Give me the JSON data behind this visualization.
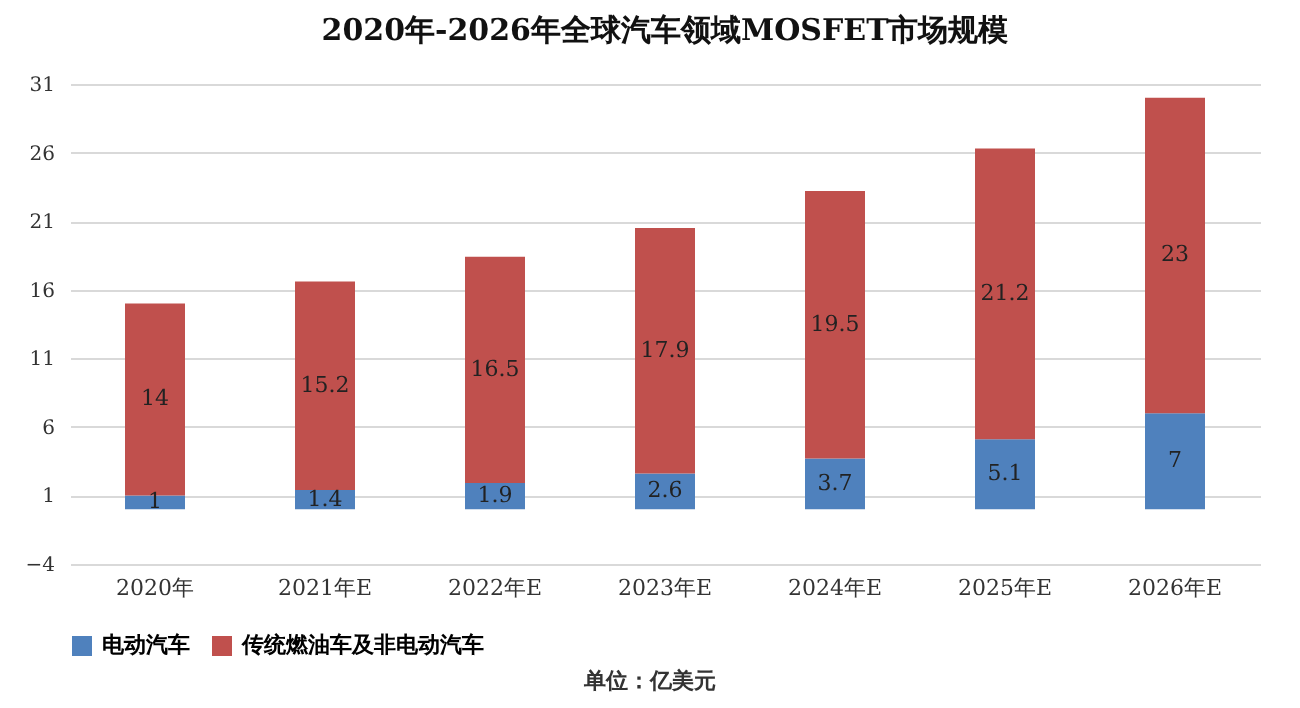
{
  "chart_data": {
    "type": "bar",
    "title": "2020年-2026年全球汽车领域MOSFET市场规模",
    "categories": [
      "2020年",
      "2021年E",
      "2022年E",
      "2023年E",
      "2024年E",
      "2025年E",
      "2026年E"
    ],
    "series": [
      {
        "name": "电动汽车",
        "color": "#4f81bd",
        "values": [
          1,
          1.4,
          1.9,
          2.6,
          3.7,
          5.1,
          7
        ]
      },
      {
        "name": "传统燃油车及非电动汽车",
        "color": "#c0504d",
        "values": [
          14,
          15.2,
          16.5,
          17.9,
          19.5,
          21.2,
          23
        ]
      }
    ],
    "stacked": true,
    "ylim": [
      -4,
      31
    ],
    "yticks": [
      -4,
      1,
      6,
      11,
      16,
      21,
      26,
      31
    ],
    "grid": "y",
    "legend": "bottom",
    "data_labels": true,
    "annotations": [
      "单位：亿美元"
    ]
  }
}
